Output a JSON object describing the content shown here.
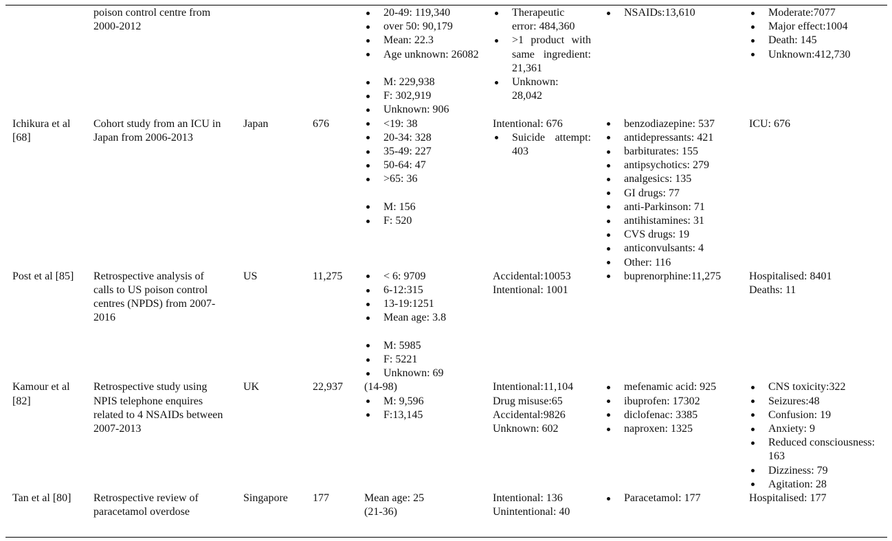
{
  "table": {
    "rows": [
      {
        "cells": [
          [],
          [
            {
              "lines": [
                "poison control centre from 2000-2012"
              ]
            }
          ],
          [],
          [],
          [
            {
              "bullets": [
                "20-49: 119,340",
                "over 50: 90,179",
                "Mean: 22.3",
                "Age unknown: 26082"
              ]
            },
            {
              "bullets": [
                "M: 229,938",
                "F: 302,919",
                "Unknown: 906"
              ]
            }
          ],
          [
            {
              "bullets": [
                "Therapeutic error: 484,360",
                ">1 product with same ingredient: 21,361",
                "Unknown: 28,042"
              ]
            }
          ],
          [
            {
              "bullets": [
                "NSAIDs:13,610"
              ]
            }
          ],
          [
            {
              "bullets": [
                "Moderate:7077",
                "Major effect:1004",
                "Death: 145",
                "Unknown:412,730"
              ]
            }
          ]
        ]
      },
      {
        "cells": [
          [
            {
              "lines": [
                "Ichikura et al [68]"
              ]
            }
          ],
          [
            {
              "lines": [
                "Cohort study from an ICU in Japan from 2006-2013"
              ]
            }
          ],
          [
            {
              "lines": [
                "Japan"
              ]
            }
          ],
          [
            {
              "lines": [
                "676"
              ]
            }
          ],
          [
            {
              "bullets": [
                "<19: 38",
                "20-34: 328",
                "35-49: 227",
                "50-64: 47",
                ">65: 36"
              ]
            },
            {
              "bullets": [
                "M: 156",
                "F: 520"
              ]
            }
          ],
          [
            {
              "lines": [
                "Intentional: 676"
              ]
            },
            {
              "bullets": [
                "Suicide attempt: 403"
              ]
            }
          ],
          [
            {
              "bullets": [
                "benzodiazepine: 537",
                "antidepressants: 421",
                "barbiturates: 155",
                "antipsychotics: 279",
                "analgesics: 135",
                "GI drugs: 77",
                "anti-Parkinson: 71",
                "antihistamines: 31",
                "CVS drugs: 19",
                "anticonvulsants: 4",
                "Other: 116"
              ]
            }
          ],
          [
            {
              "lines": [
                "ICU: 676"
              ]
            }
          ]
        ]
      },
      {
        "cells": [
          [
            {
              "lines": [
                "Post et al [85]"
              ]
            }
          ],
          [
            {
              "lines": [
                "Retrospective analysis of calls to US poison control centres (NPDS) from 2007-2016"
              ]
            }
          ],
          [
            {
              "lines": [
                "US"
              ]
            }
          ],
          [
            {
              "lines": [
                "11,275"
              ]
            }
          ],
          [
            {
              "bullets": [
                "< 6: 9709",
                "6-12:315",
                "13-19:1251",
                "Mean age: 3.8"
              ]
            },
            {
              "bullets": [
                "M: 5985",
                "F: 5221",
                "Unknown: 69"
              ]
            }
          ],
          [
            {
              "lines": [
                "Accidental:10053",
                "Intentional: 1001"
              ]
            }
          ],
          [
            {
              "bullets": [
                "buprenorphine:11,275"
              ]
            }
          ],
          [
            {
              "lines": [
                "Hospitalised: 8401",
                "Deaths: 11"
              ]
            }
          ]
        ]
      },
      {
        "cells": [
          [
            {
              "lines": [
                "Kamour et al [82]"
              ]
            }
          ],
          [
            {
              "lines": [
                "Retrospective study using NPIS telephone enquires related to 4 NSAIDs between 2007-2013"
              ]
            }
          ],
          [
            {
              "lines": [
                "UK"
              ]
            }
          ],
          [
            {
              "lines": [
                "22,937"
              ]
            }
          ],
          [
            {
              "lines": [
                "(14-98)"
              ]
            },
            {
              "bullets": [
                "M: 9,596",
                "F:13,145"
              ]
            }
          ],
          [
            {
              "lines": [
                "Intentional:11,104",
                "Drug misuse:65",
                "Accidental:9826",
                "Unknown: 602"
              ]
            }
          ],
          [
            {
              "bullets": [
                "mefenamic acid: 925",
                "ibuprofen: 17302",
                "diclofenac: 3385",
                "naproxen: 1325"
              ]
            }
          ],
          [
            {
              "bullets": [
                "CNS toxicity:322",
                "Seizures:48",
                "Confusion: 19",
                "Anxiety: 9",
                "Reduced consciousness: 163",
                "Dizziness: 79",
                "Agitation: 28"
              ]
            }
          ]
        ]
      },
      {
        "cells": [
          [
            {
              "lines": [
                "Tan et al [80]"
              ]
            }
          ],
          [
            {
              "lines": [
                "Retrospective review of paracetamol overdose"
              ]
            }
          ],
          [
            {
              "lines": [
                "Singapore"
              ]
            }
          ],
          [
            {
              "lines": [
                "177"
              ]
            }
          ],
          [
            {
              "lines": [
                "Mean age: 25",
                "(21-36)"
              ]
            }
          ],
          [
            {
              "lines": [
                "Intentional: 136",
                "Unintentional: 40"
              ]
            }
          ],
          [
            {
              "bullets": [
                "Paracetamol: 177"
              ]
            }
          ],
          [
            {
              "lines": [
                "Hospitalised: 177"
              ]
            }
          ]
        ]
      }
    ]
  }
}
